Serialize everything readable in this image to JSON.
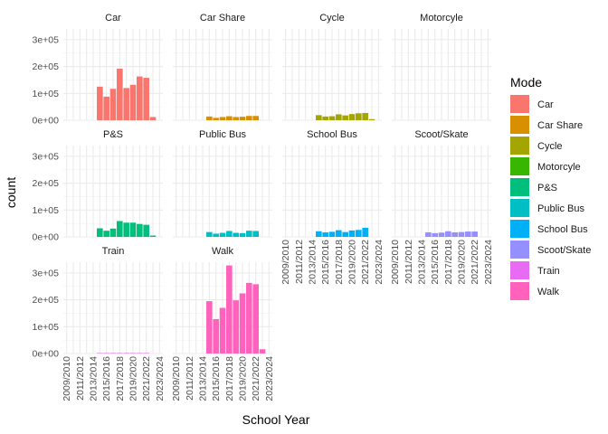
{
  "chart_data": {
    "type": "bar",
    "xlabel": "School Year",
    "ylabel": "count",
    "ylim": [
      0,
      340000
    ],
    "yticks": [
      {
        "value": 0,
        "label": "0e+00"
      },
      {
        "value": 100000,
        "label": "1e+05"
      },
      {
        "value": 200000,
        "label": "2e+05"
      },
      {
        "value": 300000,
        "label": "3e+05"
      }
    ],
    "categories": [
      "2009/2010",
      "2010/2011",
      "2011/2012",
      "2012/2013",
      "2013/2014",
      "2014/2015",
      "2015/2016",
      "2016/2017",
      "2017/2018",
      "2018/2019",
      "2019/2020",
      "2020/2021",
      "2021/2022",
      "2022/2023",
      "2023/2024"
    ],
    "tick_labels_shown": [
      "2009/2010",
      "2011/2012",
      "2013/2014",
      "2015/2016",
      "2017/2018",
      "2019/2020",
      "2021/2022",
      "2023/2024"
    ],
    "legend": {
      "title": "Mode",
      "position": "right"
    },
    "grid": true,
    "facets": [
      {
        "name": "Car",
        "color": "#F8766D",
        "values": [
          0,
          0,
          0,
          0,
          0,
          125000,
          88000,
          117000,
          192000,
          120000,
          132000,
          163000,
          158000,
          12000,
          0
        ]
      },
      {
        "name": "Car Share",
        "color": "#D89000",
        "values": [
          0,
          0,
          0,
          0,
          0,
          14000,
          9000,
          12000,
          15000,
          12000,
          13000,
          16000,
          16000,
          0,
          0
        ]
      },
      {
        "name": "Cycle",
        "color": "#A3A500",
        "values": [
          0,
          0,
          0,
          0,
          0,
          19000,
          14000,
          15000,
          22000,
          18000,
          23000,
          26000,
          27000,
          4000,
          0
        ]
      },
      {
        "name": "Motorcyle",
        "color": "#39B600",
        "values": [
          0,
          0,
          0,
          0,
          0,
          0,
          0,
          0,
          0,
          0,
          0,
          0,
          0,
          0,
          0
        ]
      },
      {
        "name": "P&S",
        "color": "#00BF7D",
        "values": [
          0,
          0,
          0,
          0,
          0,
          32000,
          23000,
          31000,
          59000,
          53000,
          53000,
          48000,
          45000,
          5000,
          0
        ]
      },
      {
        "name": "Public Bus",
        "color": "#00BFC4",
        "values": [
          0,
          0,
          0,
          0,
          0,
          18000,
          12000,
          15000,
          22000,
          15000,
          14000,
          23000,
          22000,
          0,
          0
        ]
      },
      {
        "name": "School Bus",
        "color": "#00B0F6",
        "values": [
          0,
          0,
          0,
          0,
          0,
          21000,
          17000,
          19000,
          25000,
          18000,
          24000,
          26000,
          34000,
          0,
          0
        ]
      },
      {
        "name": "Scoot/Skate",
        "color": "#9590FF",
        "values": [
          0,
          0,
          0,
          0,
          0,
          17000,
          14000,
          16000,
          21000,
          17000,
          18000,
          20000,
          20000,
          0,
          0
        ]
      },
      {
        "name": "Train",
        "color": "#E76BF3",
        "values": [
          0,
          0,
          0,
          0,
          0,
          2000,
          2000,
          2000,
          2000,
          2000,
          2000,
          2000,
          2000,
          0,
          0
        ]
      },
      {
        "name": "Walk",
        "color": "#FF62BC",
        "values": [
          0,
          0,
          0,
          0,
          0,
          195000,
          128000,
          170000,
          328000,
          198000,
          224000,
          263000,
          258000,
          16000,
          0
        ]
      }
    ]
  }
}
